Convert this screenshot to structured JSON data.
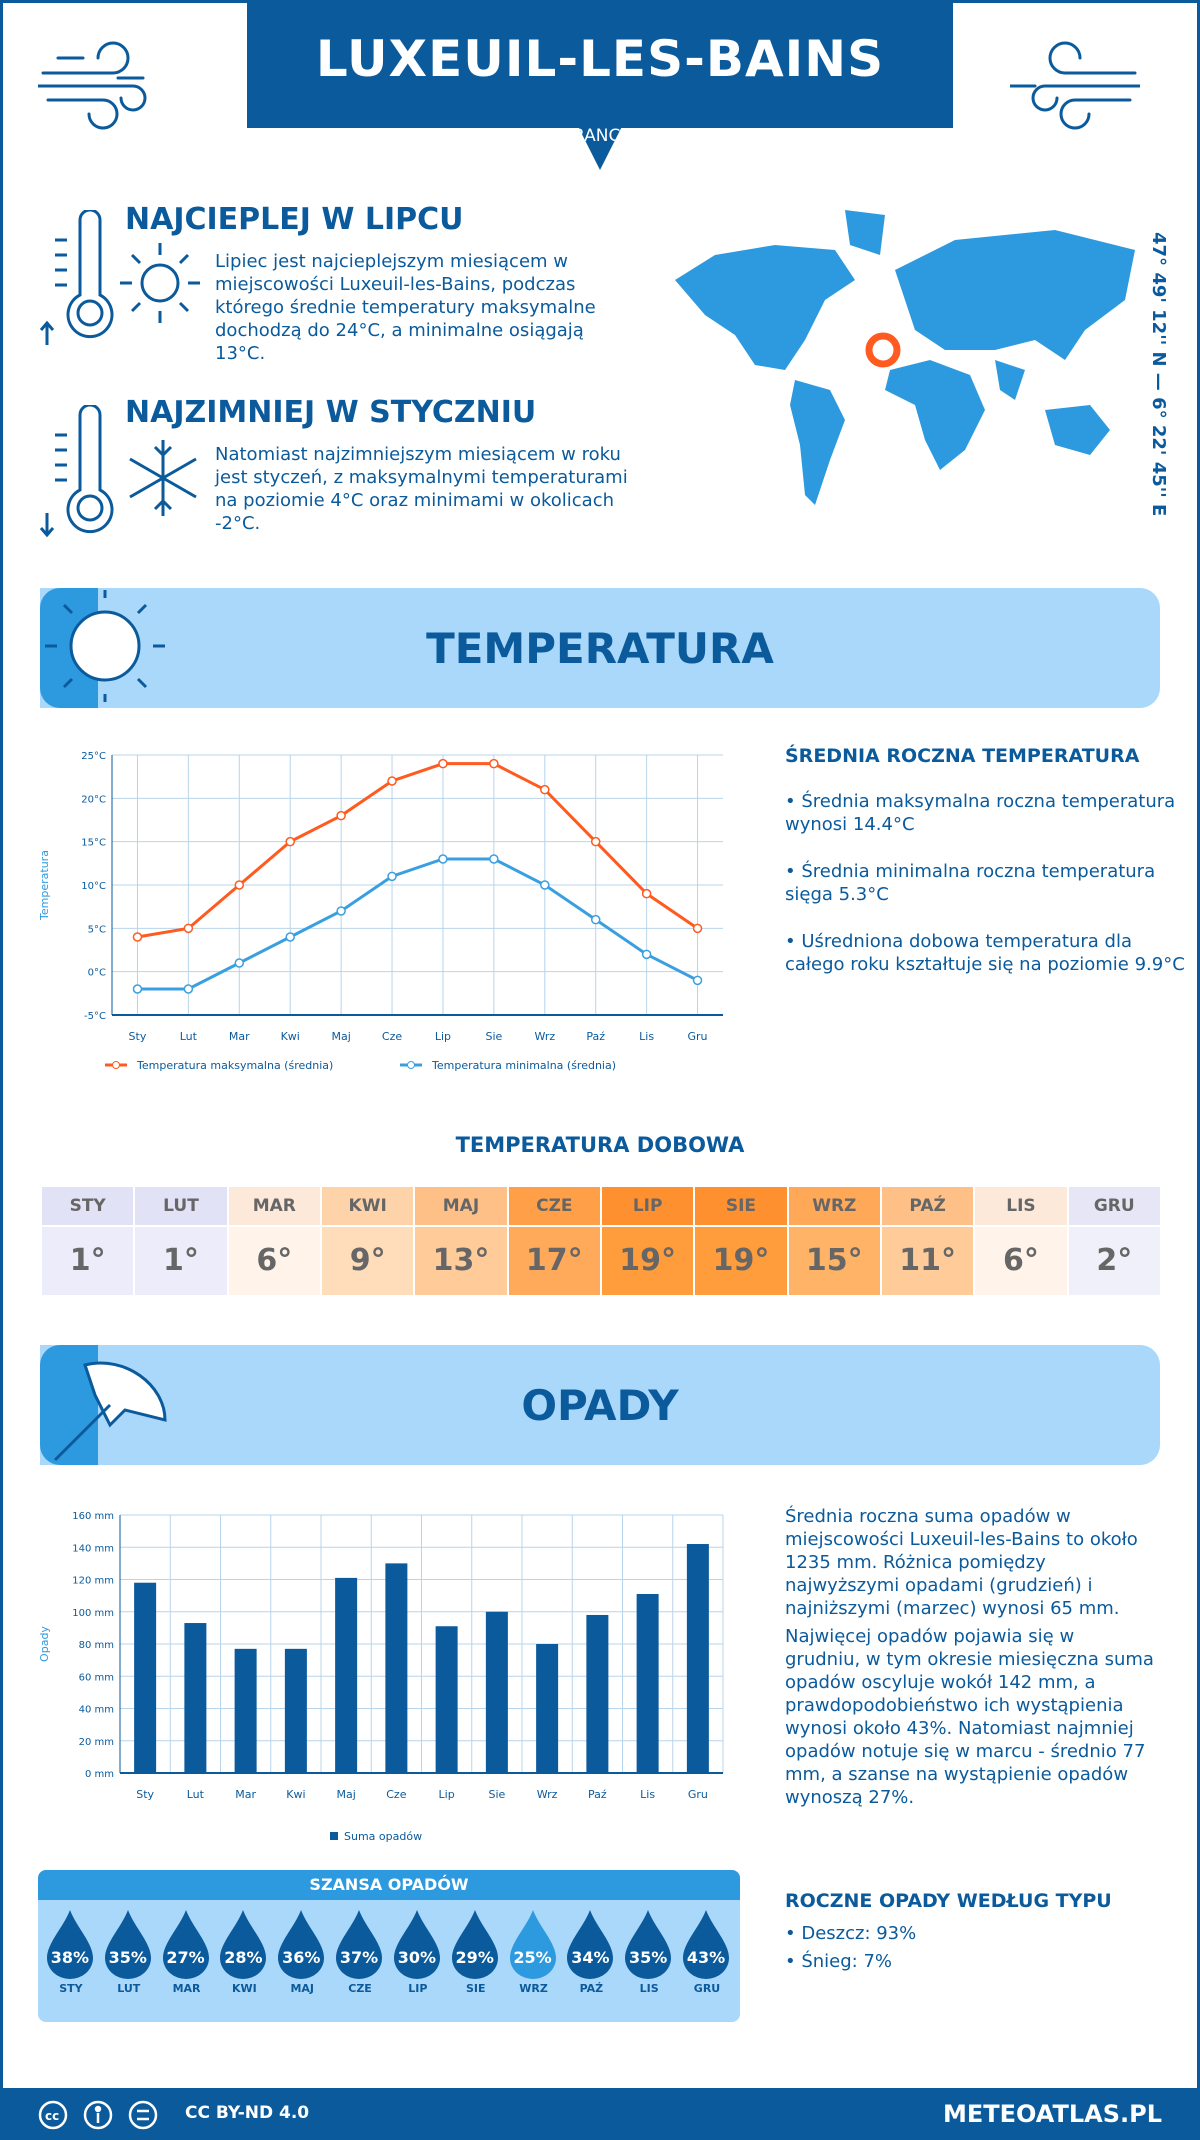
{
  "header": {
    "title": "LUXEUIL-LES-BAINS",
    "country": "FRANCJA"
  },
  "coords": "47° 49' 12'' N — 6° 22' 45'' E",
  "hot": {
    "title": "NAJCIEPLEJ W LIPCU",
    "text": "Lipiec jest najcieplejszym miesiącem w miejscowości Luxeuil-les-Bains, podczas którego średnie temperatury maksymalne dochodzą do 24°C, a minimalne osiągają 13°C."
  },
  "cold": {
    "title": "NAJZIMNIEJ W STYCZNIU",
    "text": "Natomiast najzimniejszym miesiącem w roku jest styczeń, z maksymalnymi temperaturami na poziomie 4°C oraz minimami w okolicach -2°C."
  },
  "temp_section": {
    "title": "TEMPERATURA",
    "annual_title": "ŚREDNIA ROCZNA TEMPERATURA",
    "bullets": [
      "• Średnia maksymalna roczna temperatura wynosi 14.4°C",
      "• Średnia minimalna roczna temperatura sięga 5.3°C",
      "• Uśredniona dobowa temperatura dla całego roku kształtuje się na poziomie 9.9°C"
    ],
    "daily_title": "TEMPERATURA DOBOWA"
  },
  "daily": {
    "months": [
      "STY",
      "LUT",
      "MAR",
      "KWI",
      "MAJ",
      "CZE",
      "LIP",
      "SIE",
      "WRZ",
      "PAŹ",
      "LIS",
      "GRU"
    ],
    "values": [
      "1°",
      "1°",
      "6°",
      "9°",
      "13°",
      "17°",
      "19°",
      "19°",
      "15°",
      "11°",
      "6°",
      "2°"
    ],
    "colors": [
      "#ececfb",
      "#ececfb",
      "#fff3ea",
      "#ffddbb",
      "#ffcc99",
      "#ffaa5a",
      "#ff9c3c",
      "#ff9c3c",
      "#ffb366",
      "#ffcc99",
      "#fff3ea",
      "#f0f0fb"
    ],
    "head_colors": [
      "#e2e2f6",
      "#e2e2f6",
      "#fde9da",
      "#ffd3aa",
      "#ffc088",
      "#ff9f48",
      "#ff9030",
      "#ff9030",
      "#ffa858",
      "#ffc088",
      "#fde9da",
      "#e6e6f6"
    ]
  },
  "chart_data": [
    {
      "type": "line",
      "ylabel": "Temperatura",
      "categories": [
        "Sty",
        "Lut",
        "Mar",
        "Kwi",
        "Maj",
        "Cze",
        "Lip",
        "Sie",
        "Wrz",
        "Paź",
        "Lis",
        "Gru"
      ],
      "ylim": [
        -5,
        25
      ],
      "yticks": [
        "-5°C",
        "0°C",
        "5°C",
        "10°C",
        "15°C",
        "20°C",
        "25°C"
      ],
      "grid": true,
      "legend": "bottom",
      "series": [
        {
          "name": "Temperatura maksymalna (średnia)",
          "color": "#ff5a1f",
          "values": [
            4,
            5,
            10,
            15,
            18,
            22,
            24,
            24,
            21,
            15,
            9,
            5
          ]
        },
        {
          "name": "Temperatura minimalna (średnia)",
          "color": "#3a9fe0",
          "values": [
            -2,
            -2,
            1,
            4,
            7,
            11,
            13,
            13,
            10,
            6,
            2,
            -1
          ]
        }
      ]
    },
    {
      "type": "bar",
      "ylabel": "Opady",
      "categories": [
        "Sty",
        "Lut",
        "Mar",
        "Kwi",
        "Maj",
        "Cze",
        "Lip",
        "Sie",
        "Wrz",
        "Paź",
        "Lis",
        "Gru"
      ],
      "ylim": [
        0,
        160
      ],
      "yticks": [
        "0 mm",
        "20 mm",
        "40 mm",
        "60 mm",
        "80 mm",
        "100 mm",
        "120 mm",
        "140 mm",
        "160 mm"
      ],
      "grid": true,
      "legend": "bottom",
      "series": [
        {
          "name": "Suma opadów",
          "color": "#0a5a9c",
          "values": [
            118,
            93,
            77,
            77,
            121,
            130,
            91,
            100,
            80,
            98,
            111,
            142
          ]
        }
      ]
    }
  ],
  "precip_section": {
    "title": "OPADY",
    "text1": "Średnia roczna suma opadów w miejscowości Luxeuil-les-Bains to około 1235 mm. Różnica pomiędzy najwyższymi opadami (grudzień) i najniższymi (marzec) wynosi 65 mm.",
    "text2": "Najwięcej opadów pojawia się w grudniu, w tym okresie miesięczna suma opadów oscyluje wokół 142 mm, a prawdopodobieństwo ich wystąpienia wynosi około 43%. Natomiast najmniej opadów notuje się w marcu - średnio 77 mm, a szanse na wystąpienie opadów wynoszą 27%.",
    "type_title": "ROCZNE OPADY WEDŁUG TYPU",
    "types": [
      "• Deszcz: 93%",
      "• Śnieg: 7%"
    ]
  },
  "chance": {
    "title": "SZANSA OPADÓW",
    "months": [
      "STY",
      "LUT",
      "MAR",
      "KWI",
      "MAJ",
      "CZE",
      "LIP",
      "SIE",
      "WRZ",
      "PAŹ",
      "LIS",
      "GRU"
    ],
    "values": [
      "38%",
      "35%",
      "27%",
      "28%",
      "36%",
      "37%",
      "30%",
      "29%",
      "25%",
      "34%",
      "35%",
      "43%"
    ],
    "colors": {
      "default": "#0a5a9c",
      "lowest": "#2d9ae0"
    }
  },
  "footer": {
    "license": "CC BY-ND 4.0",
    "site": "METEOATLAS.PL"
  }
}
